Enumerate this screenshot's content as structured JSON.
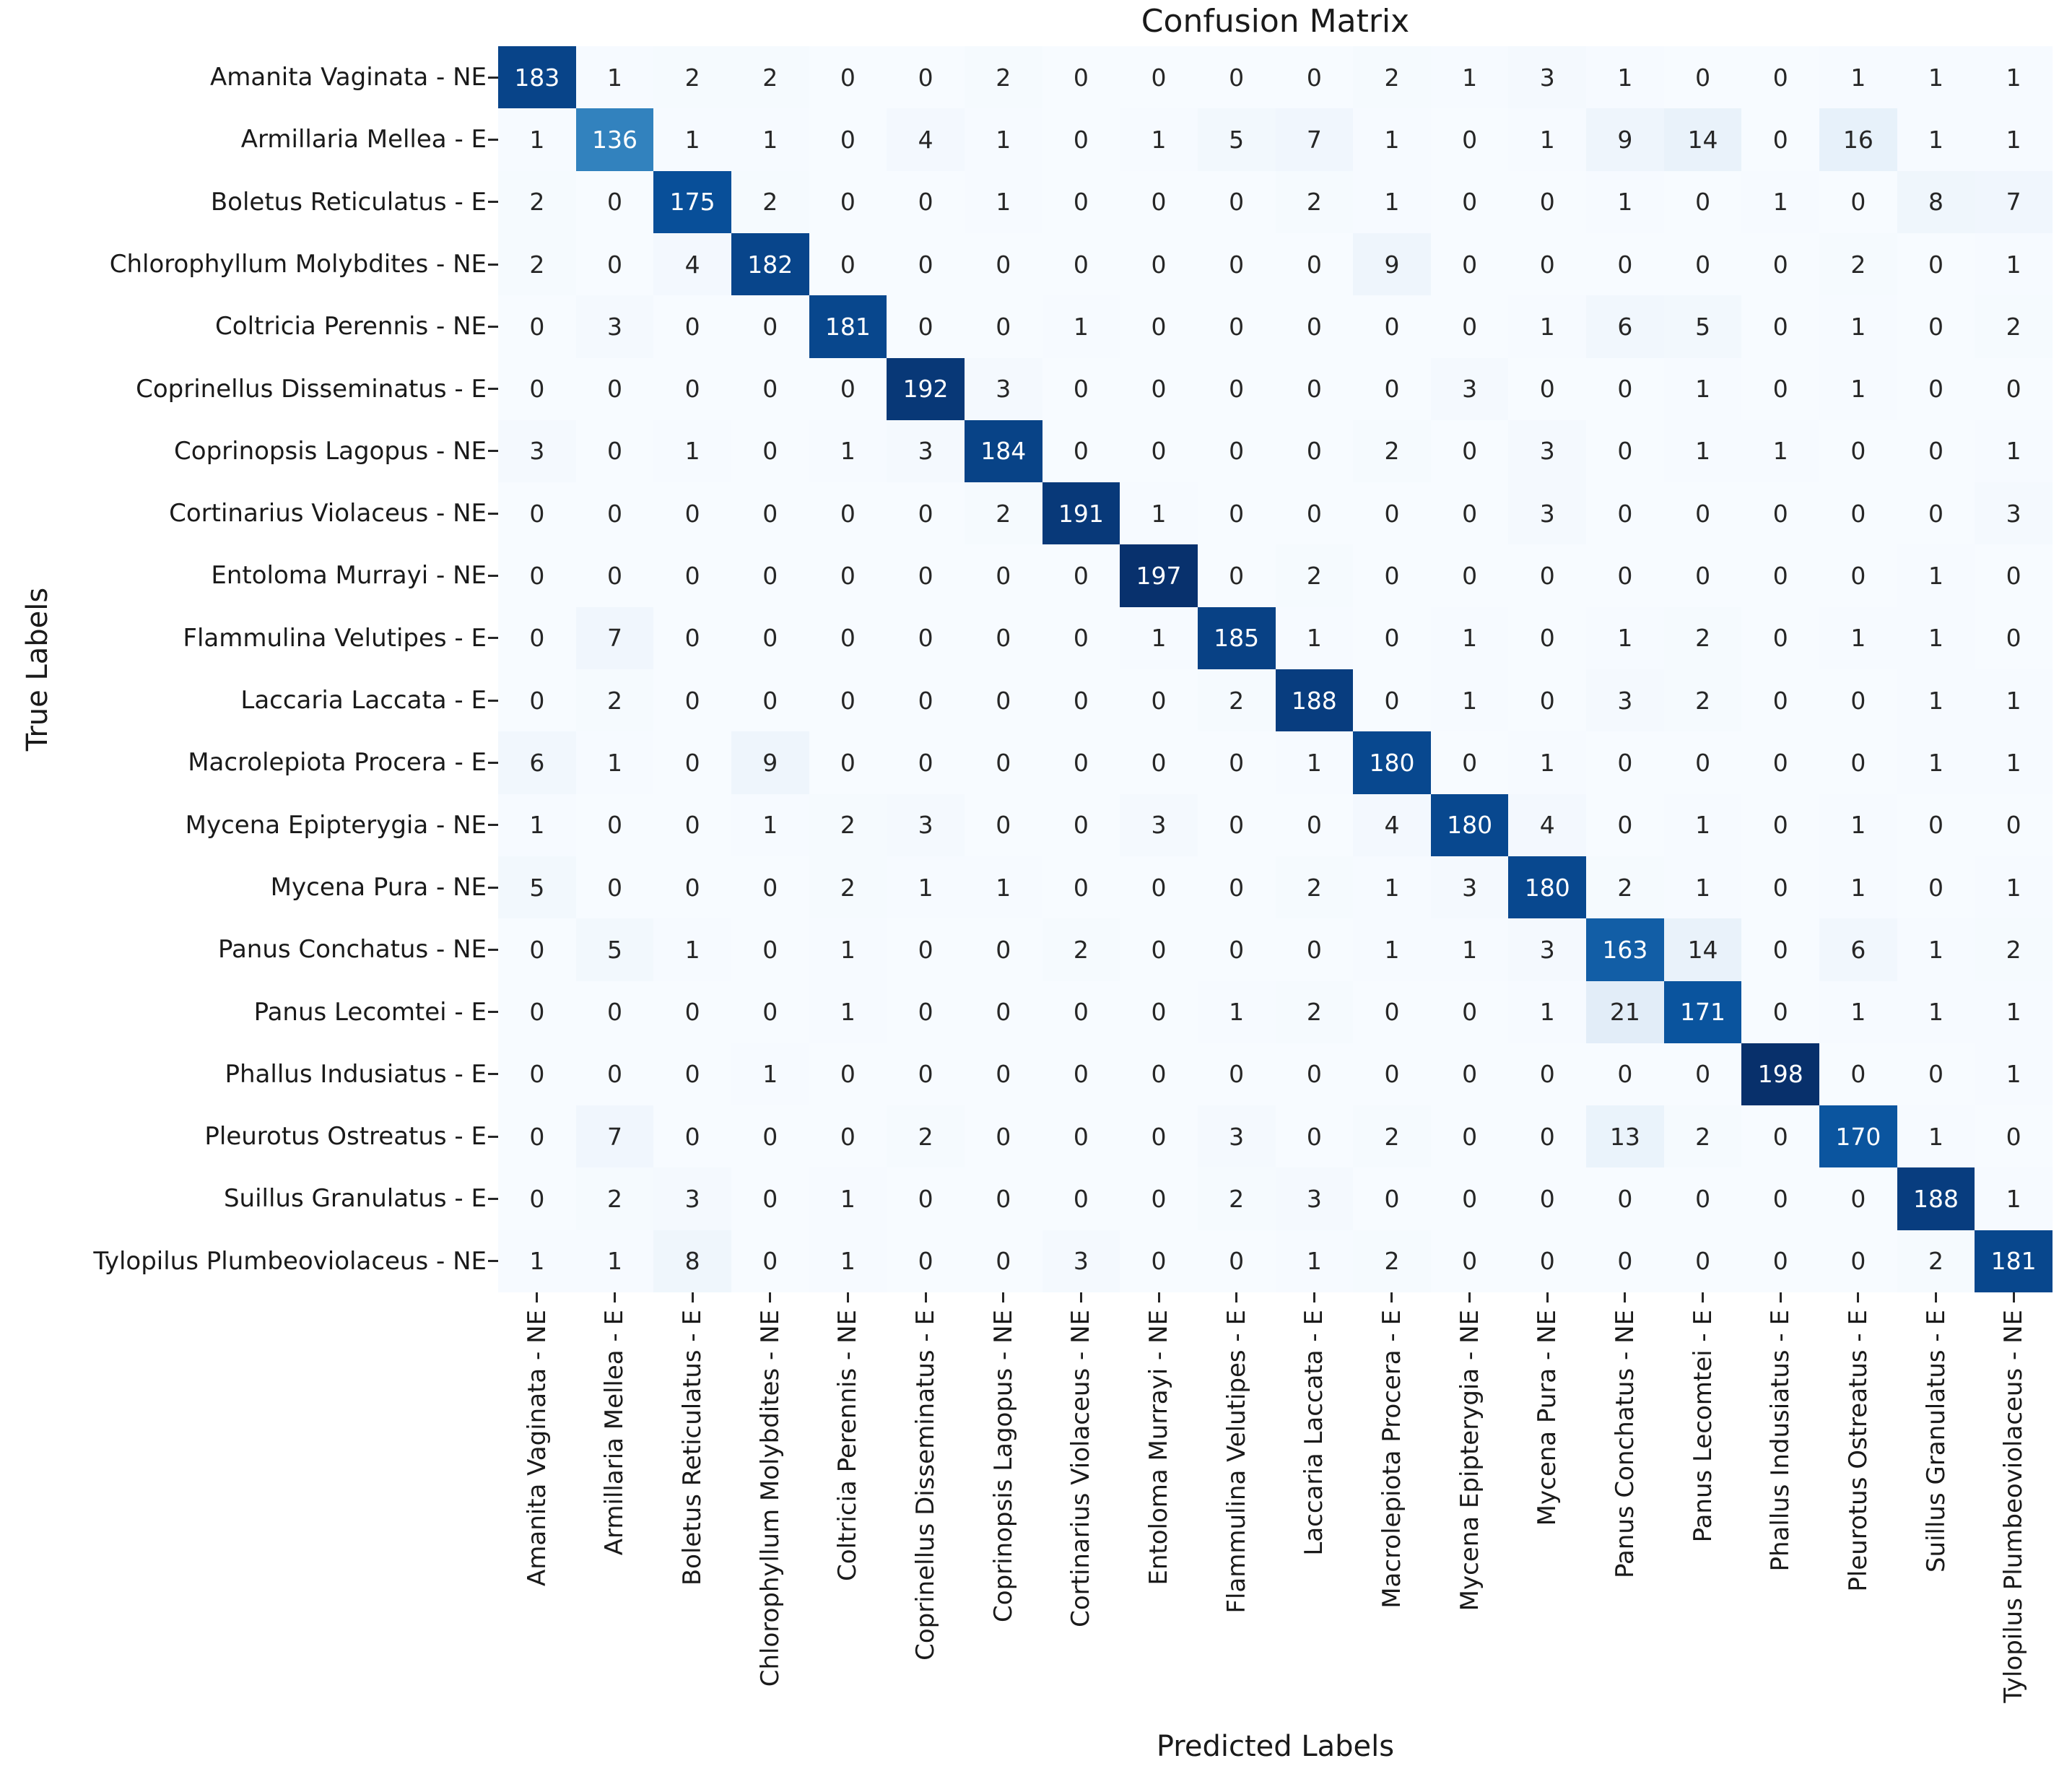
{
  "chart_data": {
    "type": "heatmap",
    "title": "Confusion Matrix",
    "xlabel": "Predicted Labels",
    "ylabel": "True Labels",
    "categories": [
      "Amanita Vaginata - NE",
      "Armillaria Mellea - E",
      "Boletus Reticulatus - E",
      "Chlorophyllum Molybdites - NE",
      "Coltricia Perennis - NE",
      "Coprinellus Disseminatus - E",
      "Coprinopsis Lagopus - NE",
      "Cortinarius Violaceus - NE",
      "Entoloma Murrayi - NE",
      "Flammulina Velutipes - E",
      "Laccaria Laccata - E",
      "Macrolepiota Procera - E",
      "Mycena Epipterygia - NE",
      "Mycena Pura - NE",
      "Panus Conchatus - NE",
      "Panus Lecomtei - E",
      "Phallus Indusiatus - E",
      "Pleurotus Ostreatus - E",
      "Suillus Granulatus - E",
      "Tylopilus Plumbeoviolaceus - NE"
    ],
    "matrix": [
      [
        183,
        1,
        2,
        2,
        0,
        0,
        2,
        0,
        0,
        0,
        0,
        2,
        1,
        3,
        1,
        0,
        0,
        1,
        1,
        1
      ],
      [
        1,
        136,
        1,
        1,
        0,
        4,
        1,
        0,
        1,
        5,
        7,
        1,
        0,
        1,
        9,
        14,
        0,
        16,
        1,
        1
      ],
      [
        2,
        0,
        175,
        2,
        0,
        0,
        1,
        0,
        0,
        0,
        2,
        1,
        0,
        0,
        1,
        0,
        1,
        0,
        8,
        7
      ],
      [
        2,
        0,
        4,
        182,
        0,
        0,
        0,
        0,
        0,
        0,
        0,
        9,
        0,
        0,
        0,
        0,
        0,
        2,
        0,
        1
      ],
      [
        0,
        3,
        0,
        0,
        181,
        0,
        0,
        1,
        0,
        0,
        0,
        0,
        0,
        1,
        6,
        5,
        0,
        1,
        0,
        2
      ],
      [
        0,
        0,
        0,
        0,
        0,
        192,
        3,
        0,
        0,
        0,
        0,
        0,
        3,
        0,
        0,
        1,
        0,
        1,
        0,
        0
      ],
      [
        3,
        0,
        1,
        0,
        1,
        3,
        184,
        0,
        0,
        0,
        0,
        2,
        0,
        3,
        0,
        1,
        1,
        0,
        0,
        1
      ],
      [
        0,
        0,
        0,
        0,
        0,
        0,
        2,
        191,
        1,
        0,
        0,
        0,
        0,
        3,
        0,
        0,
        0,
        0,
        0,
        3
      ],
      [
        0,
        0,
        0,
        0,
        0,
        0,
        0,
        0,
        197,
        0,
        2,
        0,
        0,
        0,
        0,
        0,
        0,
        0,
        1,
        0
      ],
      [
        0,
        7,
        0,
        0,
        0,
        0,
        0,
        0,
        1,
        185,
        1,
        0,
        1,
        0,
        1,
        2,
        0,
        1,
        1,
        0
      ],
      [
        0,
        2,
        0,
        0,
        0,
        0,
        0,
        0,
        0,
        2,
        188,
        0,
        1,
        0,
        3,
        2,
        0,
        0,
        1,
        1
      ],
      [
        6,
        1,
        0,
        9,
        0,
        0,
        0,
        0,
        0,
        0,
        1,
        180,
        0,
        1,
        0,
        0,
        0,
        0,
        1,
        1
      ],
      [
        1,
        0,
        0,
        1,
        2,
        3,
        0,
        0,
        3,
        0,
        0,
        4,
        180,
        4,
        0,
        1,
        0,
        1,
        0,
        0
      ],
      [
        5,
        0,
        0,
        0,
        2,
        1,
        1,
        0,
        0,
        0,
        2,
        1,
        3,
        180,
        2,
        1,
        0,
        1,
        0,
        1
      ],
      [
        0,
        5,
        1,
        0,
        1,
        0,
        0,
        2,
        0,
        0,
        0,
        1,
        1,
        3,
        163,
        14,
        0,
        6,
        1,
        2
      ],
      [
        0,
        0,
        0,
        0,
        1,
        0,
        0,
        0,
        0,
        1,
        2,
        0,
        0,
        1,
        21,
        171,
        0,
        1,
        1,
        1
      ],
      [
        0,
        0,
        0,
        1,
        0,
        0,
        0,
        0,
        0,
        0,
        0,
        0,
        0,
        0,
        0,
        0,
        198,
        0,
        0,
        1
      ],
      [
        0,
        7,
        0,
        0,
        0,
        2,
        0,
        0,
        0,
        3,
        0,
        2,
        0,
        0,
        13,
        2,
        0,
        170,
        1,
        0
      ],
      [
        0,
        2,
        3,
        0,
        1,
        0,
        0,
        0,
        0,
        2,
        3,
        0,
        0,
        0,
        0,
        0,
        0,
        0,
        188,
        1
      ],
      [
        1,
        1,
        8,
        0,
        1,
        0,
        0,
        3,
        0,
        0,
        1,
        2,
        0,
        0,
        0,
        0,
        0,
        0,
        2,
        181
      ]
    ],
    "vmin": 0,
    "vmax": 198,
    "colormap_name": "Blues",
    "colormap_stops": [
      "#f7fbff",
      "#deebf7",
      "#c6dbef",
      "#9ecae1",
      "#6baed6",
      "#4292c6",
      "#2171b5",
      "#08519c",
      "#08306b"
    ],
    "annot_color_on_dark": "#ffffff",
    "annot_color_on_light": "#262626",
    "grid": false,
    "legend_position": "none",
    "x_tick_rotation": 90
  }
}
